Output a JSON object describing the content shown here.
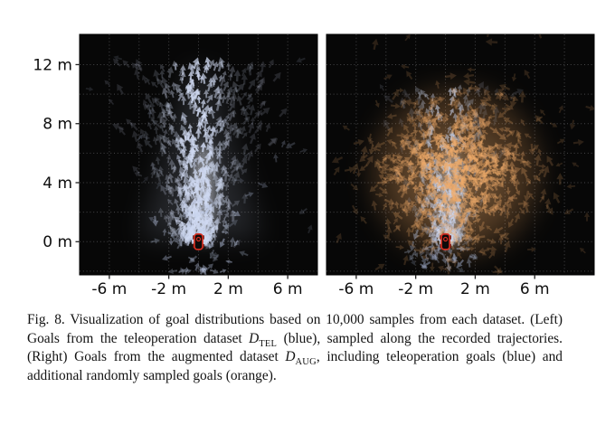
{
  "caption": {
    "parts": [
      {
        "text": "Fig. 8. Visualization of goal distributions based on 10,000 samples from each dataset. (Left) Goals from the teleoperation dataset "
      },
      {
        "text": "D"
      },
      {
        "text": "TEL"
      },
      {
        "text": " (blue), sampled along the recorded trajectories. (Right) Goals from the augmented dataset "
      },
      {
        "text": "D"
      },
      {
        "text": "AUG"
      },
      {
        "text": ", including teleoperation goals (blue) and additional randomly sampled goals (orange)."
      }
    ]
  },
  "chart_data": [
    {
      "id": "teleoperation",
      "type": "scatter",
      "subtype": "quiver-goal-distribution",
      "title": "",
      "description": "Goals from the teleoperation dataset D_TEL (blue), sampled along recorded trajectories",
      "samples_total": 10000,
      "xlim": [
        -8,
        8
      ],
      "ylim": [
        -2.25,
        14.05
      ],
      "xticks": [
        {
          "v": -6,
          "label": "-6 m"
        },
        {
          "v": -2,
          "label": "-2 m"
        },
        {
          "v": 2,
          "label": "2 m"
        },
        {
          "v": 6,
          "label": "6 m"
        }
      ],
      "yticks": [
        {
          "v": 0,
          "label": "0 m"
        },
        {
          "v": 4,
          "label": "4 m"
        },
        {
          "v": 8,
          "label": "8 m"
        },
        {
          "v": 12,
          "label": "12 m"
        }
      ],
      "show_y_tick_labels": true,
      "background": "#070707",
      "grid": {
        "step_m": 2,
        "color": "rgba(205,205,212,0.32)",
        "dash": "1 2.8"
      },
      "robot_marker": {
        "x_m": 0,
        "y_m": 0,
        "color": "#da2f21"
      },
      "glows": [
        {
          "kind": "plume-wide",
          "color": "#ccd8f2",
          "opacity": 0.15
        },
        {
          "kind": "plume-core",
          "color": "#eef2fc",
          "opacity": 0.5,
          "cx_m": 0.35,
          "cy_m": 3.3
        }
      ],
      "series": [
        {
          "name": "teleop-goals-plume",
          "legend": "D_TEL goals (blue)",
          "shape": "plume",
          "seed": 11,
          "arrows": 620,
          "color_rgb": [
            207,
            217,
            241
          ],
          "y_max_m": 12.2,
          "y_pow": 1.35,
          "sigma_base_m": 0.5,
          "sigma_slope": 0.33,
          "sigma_quad": 0.012,
          "alpha_min": 0.15,
          "alpha_core": 0.75,
          "core_sigma_m": 1.15,
          "tilt_deg_per_m": 7,
          "angle_spread_deg": 16
        },
        {
          "name": "teleop-goals-origin-scatter",
          "shape": "ring",
          "seed": 23,
          "arrows": 74,
          "color_rgb": [
            186,
            198,
            226
          ],
          "r_min_m": 0.5,
          "r_max_m": 3.5,
          "alpha_min": 0.16,
          "alpha_max": 0.5
        },
        {
          "name": "teleop-goals-outliers",
          "shape": "sparse",
          "seed": 37,
          "arrows": 18,
          "color_rgb": [
            175,
            188,
            218
          ],
          "alpha_min": 0.12,
          "alpha_max": 0.3
        }
      ]
    },
    {
      "id": "augmented",
      "type": "scatter",
      "subtype": "quiver-goal-distribution",
      "title": "",
      "description": "Goals from the augmented dataset D_AUG: teleoperation goals (blue) plus randomly sampled goals (orange)",
      "samples_total": 10000,
      "xlim": [
        -8,
        10
      ],
      "ylim": [
        -2.25,
        14.05
      ],
      "xticks": [
        {
          "v": -6,
          "label": "-6 m"
        },
        {
          "v": -2,
          "label": "-2 m"
        },
        {
          "v": 2,
          "label": "2 m"
        },
        {
          "v": 6,
          "label": "6 m"
        }
      ],
      "yticks": [
        {
          "v": 0,
          "label": "0 m"
        },
        {
          "v": 4,
          "label": "4 m"
        },
        {
          "v": 8,
          "label": "8 m"
        },
        {
          "v": 12,
          "label": "12 m"
        }
      ],
      "show_y_tick_labels": false,
      "background": "#070707",
      "grid": {
        "step_m": 2,
        "color": "rgba(205,205,212,0.32)",
        "dash": "1 2.8"
      },
      "robot_marker": {
        "x_m": 0,
        "y_m": 0,
        "color": "#da2f21"
      },
      "glows": [
        {
          "kind": "disc",
          "color": "#eca45e",
          "opacity": 0.26,
          "cx_m": 0.7,
          "cy_m": 4.7,
          "r_m": 5.6
        },
        {
          "kind": "disc",
          "color": "#f0ad6e",
          "opacity": 0.22,
          "cx_m": 0.6,
          "cy_m": 4.3,
          "r_m": 3.4
        },
        {
          "kind": "plume-core",
          "color": "#e9eefa",
          "opacity": 0.4,
          "cx_m": 0.35,
          "cy_m": 3.0
        }
      ],
      "series": [
        {
          "name": "teleop-goals-plume",
          "legend": "teleoperation goals (blue)",
          "shape": "plume",
          "seed": 51,
          "arrows": 300,
          "color_rgb": [
            205,
            215,
            240
          ],
          "y_max_m": 10.5,
          "y_pow": 1.5,
          "sigma_base_m": 0.4,
          "sigma_slope": 0.27,
          "sigma_quad": 0.01,
          "alpha_min": 0.12,
          "alpha_core": 0.6,
          "core_sigma_m": 1.0,
          "tilt_deg_per_m": 6,
          "angle_spread_deg": 14
        },
        {
          "name": "teleop-goals-origin-scatter",
          "shape": "ring",
          "seed": 63,
          "arrows": 30,
          "color_rgb": [
            178,
            192,
            222
          ],
          "r_min_m": 0.5,
          "r_max_m": 2.8,
          "alpha_min": 0.15,
          "alpha_max": 0.42
        },
        {
          "name": "teleop-goals-below-origin",
          "shape": "below",
          "seed": 77,
          "arrows": 26,
          "color_rgb": [
            170,
            185,
            218
          ],
          "alpha_min": 0.18,
          "alpha_max": 0.5
        },
        {
          "name": "augmented-random-goals",
          "legend": "randomly sampled goals (orange)",
          "shape": "disc",
          "seed": 91,
          "arrows": 690,
          "color_rgb": [
            238,
            170,
            105
          ],
          "cx_m": 0.7,
          "cy_m": 4.7,
          "sigma_m": 2.95,
          "alpha_min": 0.16,
          "alpha_peak": 0.6,
          "up_bias": 0.55
        }
      ]
    }
  ]
}
